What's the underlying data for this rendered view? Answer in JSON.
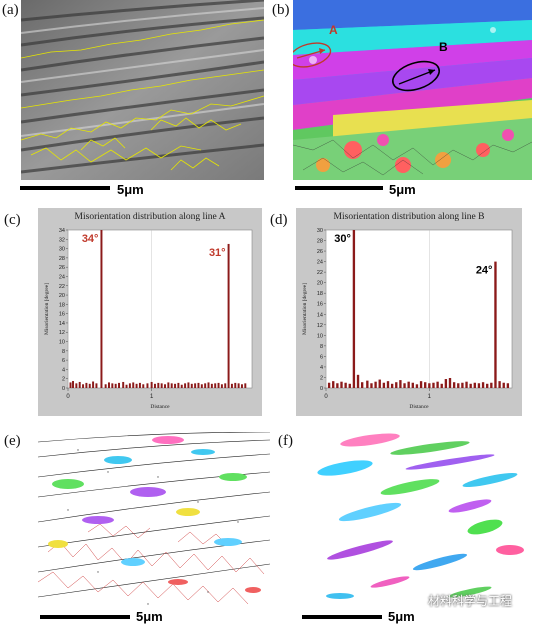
{
  "panels": {
    "a": {
      "letter": "(a)",
      "scale": "5μm"
    },
    "b": {
      "letter": "(b)",
      "scale": "5μm",
      "label_a": "A",
      "label_b": "B"
    },
    "c": {
      "letter": "(c)"
    },
    "d": {
      "letter": "(d)"
    },
    "e": {
      "letter": "(e)",
      "scale": "5μm"
    },
    "f": {
      "letter": "(f)",
      "scale": "5μm"
    }
  },
  "watermark": "材料科学与工程",
  "colors": {
    "bar": "#8b1a1a",
    "anno_red": "#c0392b",
    "chart_bg": "#c8c8c8",
    "plot_bg": "#ffffff"
  },
  "chart_data": [
    {
      "type": "bar",
      "title": "Misorientation distribution along line A",
      "ylabel": "Misorientation [degree]",
      "xlabel": "Distance",
      "ylim": [
        0,
        34
      ],
      "yticks": [
        0,
        2,
        4,
        6,
        8,
        10,
        12,
        14,
        16,
        18,
        20,
        22,
        24,
        26,
        28,
        30,
        32,
        34
      ],
      "xlim": [
        0,
        2.2
      ],
      "xticks": [
        0,
        1
      ],
      "x": [
        0.03,
        0.06,
        0.1,
        0.14,
        0.18,
        0.22,
        0.26,
        0.3,
        0.34,
        0.4,
        0.45,
        0.49,
        0.53,
        0.57,
        0.61,
        0.66,
        0.7,
        0.74,
        0.78,
        0.82,
        0.86,
        0.9,
        0.95,
        1.0,
        1.04,
        1.08,
        1.12,
        1.16,
        1.2,
        1.24,
        1.28,
        1.32,
        1.36,
        1.4,
        1.44,
        1.48,
        1.52,
        1.56,
        1.6,
        1.64,
        1.68,
        1.72,
        1.76,
        1.8,
        1.84,
        1.88,
        1.92,
        1.96,
        2.0,
        2.04,
        2.08,
        2.12
      ],
      "values": [
        1.2,
        1.5,
        1.0,
        1.3,
        0.8,
        1.1,
        0.9,
        1.4,
        1.0,
        34,
        0.8,
        1.2,
        1.0,
        0.9,
        1.1,
        1.3,
        0.7,
        1.0,
        1.2,
        0.9,
        1.1,
        0.8,
        1.0,
        1.3,
        0.9,
        1.1,
        1.0,
        0.8,
        1.2,
        1.0,
        0.9,
        1.1,
        0.7,
        1.0,
        1.2,
        0.9,
        1.0,
        1.1,
        0.8,
        1.0,
        1.2,
        0.9,
        1.0,
        1.1,
        0.8,
        1.0,
        31,
        0.9,
        1.1,
        1.0,
        0.8,
        1.0
      ],
      "annotations": [
        {
          "text": "34°",
          "x": 0.4,
          "y": 34
        },
        {
          "text": "31°",
          "x": 1.92,
          "y": 31
        }
      ]
    },
    {
      "type": "bar",
      "title": "Misorientation distribution along line B",
      "ylabel": "Misorientation [degree]",
      "xlabel": "Distance",
      "ylim": [
        0,
        30
      ],
      "yticks": [
        0,
        2,
        4,
        6,
        8,
        10,
        12,
        14,
        16,
        18,
        20,
        22,
        24,
        26,
        28,
        30
      ],
      "xlim": [
        0,
        1.8
      ],
      "xticks": [
        0,
        1
      ],
      "x": [
        0.03,
        0.07,
        0.11,
        0.15,
        0.19,
        0.23,
        0.27,
        0.31,
        0.35,
        0.4,
        0.44,
        0.48,
        0.52,
        0.56,
        0.6,
        0.64,
        0.68,
        0.72,
        0.76,
        0.8,
        0.84,
        0.88,
        0.92,
        0.96,
        1.0,
        1.04,
        1.08,
        1.12,
        1.16,
        1.2,
        1.24,
        1.28,
        1.32,
        1.36,
        1.4,
        1.44,
        1.48,
        1.52,
        1.56,
        1.6,
        1.64,
        1.68,
        1.72,
        1.76
      ],
      "values": [
        1.0,
        1.3,
        0.9,
        1.2,
        1.0,
        0.8,
        30,
        2.5,
        1.1,
        1.4,
        0.9,
        1.2,
        1.6,
        1.0,
        1.3,
        0.8,
        1.1,
        1.5,
        0.9,
        1.2,
        1.0,
        0.7,
        1.3,
        1.1,
        0.9,
        1.0,
        1.2,
        0.8,
        1.7,
        1.9,
        1.1,
        0.9,
        1.0,
        1.2,
        0.8,
        1.0,
        0.9,
        1.1,
        0.8,
        1.0,
        24,
        1.3,
        1.0,
        0.9
      ],
      "annotations": [
        {
          "text": "30°",
          "x": 0.27,
          "y": 30
        },
        {
          "text": "24°",
          "x": 1.64,
          "y": 24
        }
      ]
    }
  ]
}
